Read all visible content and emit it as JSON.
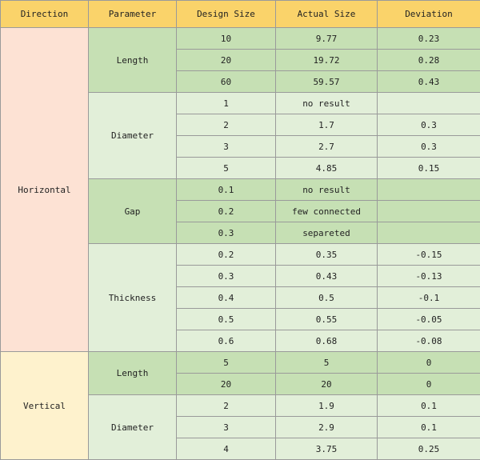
{
  "headers": [
    "Direction",
    "Parameter",
    "Design Size",
    "Actual Size",
    "Deviation"
  ],
  "colors": {
    "header_bg": "#fad36a",
    "horizontal_bg": "#fde2d4",
    "vertical_bg": "#fef2cd",
    "group_dark_bg": "#c6e0b4",
    "group_light_bg": "#e2efd9"
  },
  "directions": [
    {
      "name": "Horizontal",
      "groups": [
        {
          "parameter": "Length",
          "shade": "dark",
          "rows": [
            {
              "design": "10",
              "actual": "9.77",
              "deviation": "0.23"
            },
            {
              "design": "20",
              "actual": "19.72",
              "deviation": "0.28"
            },
            {
              "design": "60",
              "actual": "59.57",
              "deviation": "0.43"
            }
          ]
        },
        {
          "parameter": "Diameter",
          "shade": "light",
          "rows": [
            {
              "design": "1",
              "actual": "no result",
              "deviation": ""
            },
            {
              "design": "2",
              "actual": "1.7",
              "deviation": "0.3"
            },
            {
              "design": "3",
              "actual": "2.7",
              "deviation": "0.3"
            },
            {
              "design": "5",
              "actual": "4.85",
              "deviation": "0.15"
            }
          ]
        },
        {
          "parameter": "Gap",
          "shade": "dark",
          "rows": [
            {
              "design": "0.1",
              "actual": "no result",
              "deviation": ""
            },
            {
              "design": "0.2",
              "actual": "few connected",
              "deviation": ""
            },
            {
              "design": "0.3",
              "actual": "separeted",
              "deviation": ""
            }
          ]
        },
        {
          "parameter": "Thickness",
          "shade": "light",
          "rows": [
            {
              "design": "0.2",
              "actual": "0.35",
              "deviation": "-0.15"
            },
            {
              "design": "0.3",
              "actual": "0.43",
              "deviation": "-0.13"
            },
            {
              "design": "0.4",
              "actual": "0.5",
              "deviation": "-0.1"
            },
            {
              "design": "0.5",
              "actual": "0.55",
              "deviation": "-0.05"
            },
            {
              "design": "0.6",
              "actual": "0.68",
              "deviation": "-0.08"
            }
          ]
        }
      ]
    },
    {
      "name": "Vertical",
      "groups": [
        {
          "parameter": "Length",
          "shade": "dark",
          "rows": [
            {
              "design": "5",
              "actual": "5",
              "deviation": "0"
            },
            {
              "design": "20",
              "actual": "20",
              "deviation": "0"
            }
          ]
        },
        {
          "parameter": "Diameter",
          "shade": "light",
          "rows": [
            {
              "design": "2",
              "actual": "1.9",
              "deviation": "0.1"
            },
            {
              "design": "3",
              "actual": "2.9",
              "deviation": "0.1"
            },
            {
              "design": "4",
              "actual": "3.75",
              "deviation": "0.25"
            }
          ]
        }
      ]
    }
  ]
}
